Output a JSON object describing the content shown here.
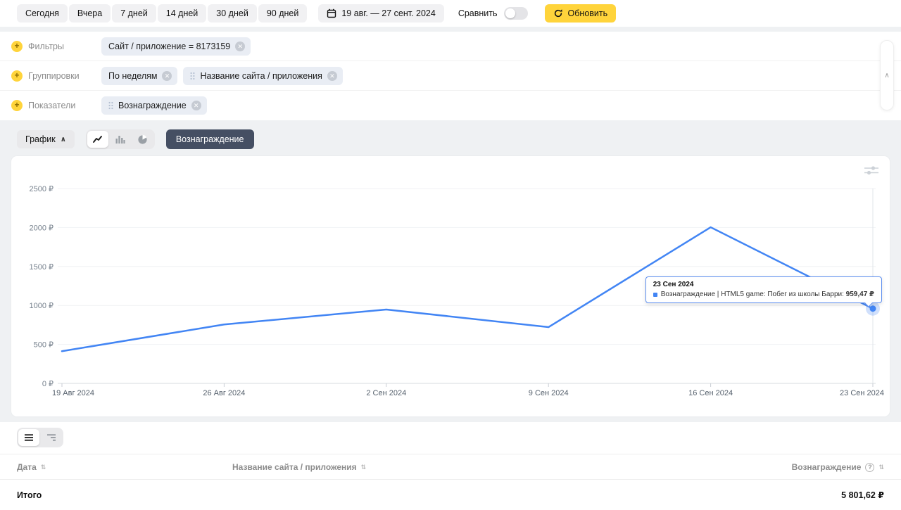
{
  "toolbar": {
    "presets": [
      "Сегодня",
      "Вчера",
      "7 дней",
      "14 дней",
      "30 дней",
      "90 дней"
    ],
    "date_range": "19 авг. — 27 сент. 2024",
    "compare_label": "Сравнить",
    "refresh_label": "Обновить"
  },
  "filters_panel": {
    "rows": [
      {
        "label": "Фильтры",
        "chips": [
          {
            "text": "Сайт / приложение = 8173159"
          }
        ]
      },
      {
        "label": "Группировки",
        "chips": [
          {
            "text": "По неделям"
          },
          {
            "text": "Название сайта / приложения"
          }
        ]
      },
      {
        "label": "Показатели",
        "chips": [
          {
            "text": "Вознаграждение"
          }
        ]
      }
    ]
  },
  "chart_controls": {
    "chart_toggle_label": "График",
    "metric_badge": "Вознаграждение"
  },
  "chart_data": {
    "type": "line",
    "title": "",
    "x": [
      "19 Авг 2024",
      "26 Авг 2024",
      "2 Сен 2024",
      "9 Сен 2024",
      "16 Сен 2024",
      "23 Сен 2024"
    ],
    "series": [
      {
        "name": "Вознаграждение | HTML5 game: Побег из школы Барри",
        "values": [
          413,
          756,
          948,
          722,
          2003,
          959.47
        ]
      }
    ],
    "ylim": [
      0,
      2500
    ],
    "yticks": [
      0,
      500,
      1000,
      1500,
      2000,
      2500
    ],
    "ytick_suffix": " ₽",
    "line_color": "#4285f4",
    "grid": true,
    "legend": "none"
  },
  "chart_tooltip": {
    "title": "23 Сен 2024",
    "series_label": "Вознаграждение | HTML5 game: Побег из школы Барри:",
    "value": "959,47 ₽"
  },
  "table": {
    "columns": [
      {
        "label": "Дата"
      },
      {
        "label": "Название сайта / приложения"
      },
      {
        "label": "Вознаграждение"
      }
    ],
    "total_label": "Итого",
    "total_value": "5 801,62 ₽"
  },
  "icons": {
    "chevron_up": "∧",
    "close": "✕",
    "plus": "+",
    "sort": "⇅",
    "help": "?"
  },
  "colors": {
    "accent_yellow": "#ffd43b",
    "metric_badge_bg": "#454f63",
    "line_blue": "#4285f4",
    "page_bg": "#eff1f3"
  }
}
